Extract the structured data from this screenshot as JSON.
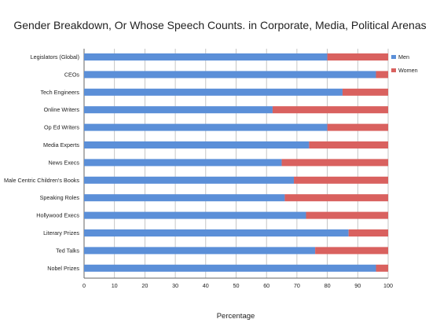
{
  "chart_data": {
    "type": "bar",
    "orientation": "horizontal",
    "stacked": true,
    "title": "Gender Breakdown, Or Whose Speech Counts. in Corporate, Media, Political Arenas",
    "xlabel": "Percentage",
    "ylabel": "",
    "xlim": [
      0,
      100
    ],
    "x_ticks": [
      "0",
      "10",
      "20",
      "30",
      "40",
      "50",
      "60",
      "70",
      "80",
      "90",
      "100"
    ],
    "grid": "vertical",
    "legend_position": "right",
    "categories": [
      "Legislators (Global)",
      "CEOs",
      "Tech Engineers",
      "Online Writers",
      "Op Ed Writers",
      "Media Experts",
      "News Execs",
      "Male Centric Children's Books",
      "Speaking Roles",
      "Hollywood Execs",
      "Literary Prizes",
      "Ted Talks",
      "Nobel Prizes"
    ],
    "series": [
      {
        "name": "Men",
        "color": "#5b8fd8",
        "values": [
          80,
          96,
          85,
          62,
          80,
          74,
          65,
          69,
          66,
          73,
          87,
          76,
          96
        ]
      },
      {
        "name": "Women",
        "color": "#d9615f",
        "values": [
          20,
          4,
          15,
          38,
          20,
          26,
          35,
          31,
          34,
          27,
          13,
          24,
          4
        ]
      }
    ]
  }
}
